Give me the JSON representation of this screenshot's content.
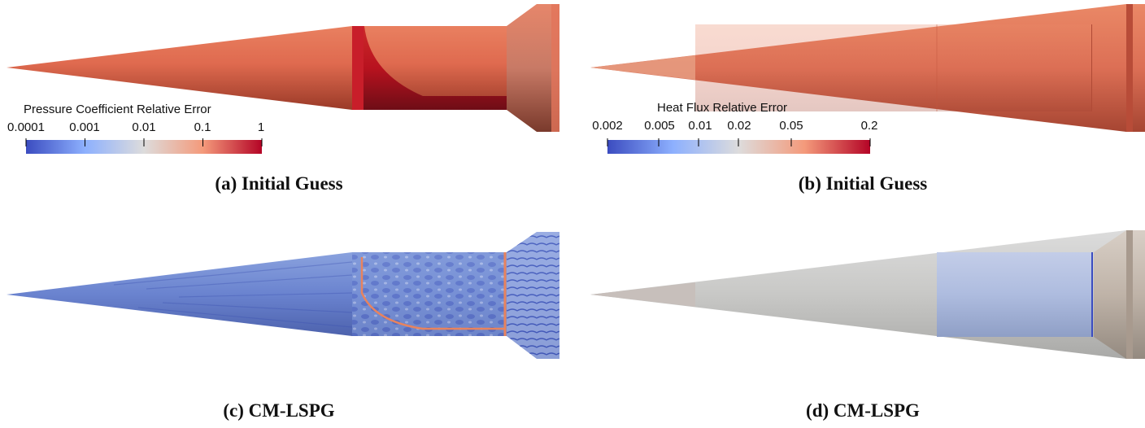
{
  "panels": [
    {
      "id": "a",
      "caption": "(a) Initial Guess",
      "field": "pressure-coefficient",
      "colorbar": {
        "title": "Pressure Coefficient Relative Error",
        "scale": "log",
        "ticks": [
          "0.0001",
          "0.001",
          "0.01",
          "0.1",
          "1"
        ],
        "colors": [
          "#3b4cc0",
          "#dddcdc",
          "#b40426"
        ]
      }
    },
    {
      "id": "b",
      "caption": "(b) Initial Guess",
      "field": "heat-flux",
      "colorbar": {
        "title": "Heat Flux Relative Error",
        "scale": "log",
        "ticks": [
          "0.002",
          "0.005",
          "0.01",
          "0.02",
          "0.05",
          "0.2"
        ],
        "colors": [
          "#3b4cc0",
          "#dddcdc",
          "#b40426"
        ]
      }
    },
    {
      "id": "c",
      "caption": "(c) CM-LSPG",
      "field": "pressure-coefficient"
    },
    {
      "id": "d",
      "caption": "(d) CM-LSPG",
      "field": "heat-flux"
    }
  ]
}
